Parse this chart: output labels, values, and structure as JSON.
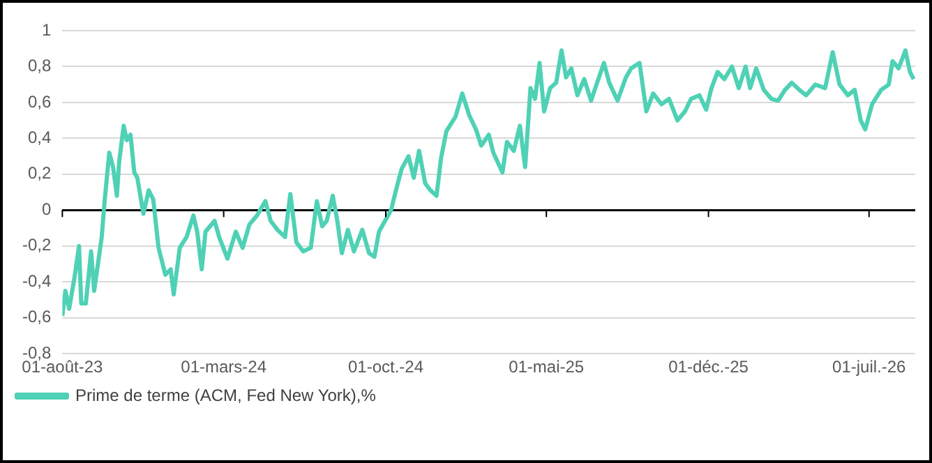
{
  "chart_data": {
    "type": "line",
    "x": [
      "2023-08-01",
      "2023-08-05",
      "2023-08-10",
      "2023-08-14",
      "2023-08-18",
      "2023-08-23",
      "2023-08-26",
      "2023-09-01",
      "2023-09-08",
      "2023-09-12",
      "2023-09-17",
      "2023-09-22",
      "2023-09-26",
      "2023-10-02",
      "2023-10-07",
      "2023-10-12",
      "2023-10-15",
      "2023-10-21",
      "2023-10-25",
      "2023-10-30",
      "2023-11-04",
      "2023-11-08",
      "2023-11-16",
      "2023-11-23",
      "2023-11-29",
      "2023-12-06",
      "2023-12-15",
      "2023-12-22",
      "2023-12-26",
      "2024-01-03",
      "2024-01-12",
      "2024-01-21",
      "2024-01-26",
      "2024-02-01",
      "2024-02-06",
      "2024-02-18",
      "2024-02-24",
      "2024-03-06",
      "2024-03-17",
      "2024-03-26",
      "2024-04-04",
      "2024-04-14",
      "2024-04-25",
      "2024-05-02",
      "2024-05-11",
      "2024-05-21",
      "2024-05-28",
      "2024-06-05",
      "2024-06-14",
      "2024-06-24",
      "2024-07-02",
      "2024-07-09",
      "2024-07-15",
      "2024-07-23",
      "2024-07-29",
      "2024-08-04",
      "2024-08-12",
      "2024-08-20",
      "2024-08-31",
      "2024-09-09",
      "2024-09-16",
      "2024-09-22",
      "2024-09-30",
      "2024-10-08",
      "2024-10-15",
      "2024-10-22",
      "2024-10-31",
      "2024-11-07",
      "2024-11-14",
      "2024-11-22",
      "2024-11-29",
      "2024-12-07",
      "2024-12-13",
      "2024-12-20",
      "2025-01-01",
      "2025-01-10",
      "2025-01-19",
      "2025-01-28",
      "2025-02-04",
      "2025-02-14",
      "2025-02-20",
      "2025-03-04",
      "2025-03-10",
      "2025-03-19",
      "2025-03-27",
      "2025-04-03",
      "2025-04-10",
      "2025-04-16",
      "2025-04-22",
      "2025-04-28",
      "2025-05-06",
      "2025-05-14",
      "2025-05-21",
      "2025-05-27",
      "2025-06-03",
      "2025-06-11",
      "2025-06-20",
      "2025-06-29",
      "2025-07-07",
      "2025-07-16",
      "2025-07-23",
      "2025-08-03",
      "2025-08-14",
      "2025-08-21",
      "2025-09-01",
      "2025-09-10",
      "2025-09-19",
      "2025-09-30",
      "2025-10-10",
      "2025-10-21",
      "2025-10-31",
      "2025-11-08",
      "2025-11-19",
      "2025-11-28",
      "2025-12-05",
      "2025-12-13",
      "2025-12-22",
      "2026-01-01",
      "2026-01-10",
      "2026-01-19",
      "2026-01-25",
      "2026-02-02",
      "2026-02-12",
      "2026-02-22",
      "2026-03-03",
      "2026-03-12",
      "2026-03-21",
      "2026-03-31",
      "2026-04-09",
      "2026-04-21",
      "2026-05-04",
      "2026-05-14",
      "2026-05-23",
      "2026-06-03",
      "2026-06-12",
      "2026-06-20",
      "2026-06-26",
      "2026-07-05",
      "2026-07-17",
      "2026-07-27",
      "2026-08-01",
      "2026-08-09",
      "2026-08-18",
      "2026-08-24",
      "2026-08-29"
    ],
    "series": [
      {
        "name": "Prime de terme (ACM, Fed New York),%",
        "color": "#4fd1b5",
        "values": [
          -0.59,
          -0.45,
          -0.55,
          -0.45,
          -0.35,
          -0.2,
          -0.52,
          -0.52,
          -0.23,
          -0.45,
          -0.3,
          -0.15,
          0.06,
          0.32,
          0.24,
          0.08,
          0.27,
          0.47,
          0.39,
          0.42,
          0.21,
          0.18,
          -0.02,
          0.11,
          0.06,
          -0.21,
          -0.36,
          -0.33,
          -0.47,
          -0.21,
          -0.15,
          -0.03,
          -0.12,
          -0.33,
          -0.12,
          -0.06,
          -0.15,
          -0.27,
          -0.12,
          -0.21,
          -0.08,
          -0.03,
          0.05,
          -0.06,
          -0.11,
          -0.15,
          0.09,
          -0.18,
          -0.23,
          -0.21,
          0.05,
          -0.09,
          -0.06,
          0.08,
          -0.06,
          -0.24,
          -0.11,
          -0.23,
          -0.11,
          -0.24,
          -0.26,
          -0.12,
          -0.06,
          0.0,
          0.12,
          0.23,
          0.3,
          0.18,
          0.33,
          0.15,
          0.11,
          0.08,
          0.29,
          0.44,
          0.52,
          0.65,
          0.53,
          0.45,
          0.36,
          0.42,
          0.32,
          0.21,
          0.38,
          0.33,
          0.47,
          0.24,
          0.68,
          0.62,
          0.82,
          0.55,
          0.68,
          0.71,
          0.89,
          0.74,
          0.79,
          0.64,
          0.73,
          0.61,
          0.71,
          0.82,
          0.71,
          0.61,
          0.74,
          0.79,
          0.82,
          0.55,
          0.65,
          0.59,
          0.62,
          0.5,
          0.55,
          0.62,
          0.64,
          0.56,
          0.68,
          0.77,
          0.73,
          0.8,
          0.68,
          0.8,
          0.68,
          0.79,
          0.67,
          0.62,
          0.61,
          0.67,
          0.71,
          0.67,
          0.64,
          0.7,
          0.68,
          0.88,
          0.7,
          0.64,
          0.67,
          0.5,
          0.45,
          0.59,
          0.67,
          0.7,
          0.83,
          0.79,
          0.89,
          0.77,
          0.73
        ]
      }
    ],
    "xlim": [
      "2023-08-01",
      "2026-08-31"
    ],
    "xticks": [
      {
        "value": "2023-08-01",
        "label": "01-août-23"
      },
      {
        "value": "2024-03-01",
        "label": "01-mars-24"
      },
      {
        "value": "2024-10-01",
        "label": "01-oct.-24"
      },
      {
        "value": "2025-05-01",
        "label": "01-mai-25"
      },
      {
        "value": "2025-12-01",
        "label": "01-déc.-25"
      },
      {
        "value": "2026-07-01",
        "label": "01-juil.-26"
      }
    ],
    "ylim": [
      -0.8,
      1
    ],
    "yticks": [
      {
        "value": -0.8,
        "label": "-0,8"
      },
      {
        "value": -0.6,
        "label": "-0,6"
      },
      {
        "value": -0.4,
        "label": "-0,4"
      },
      {
        "value": -0.2,
        "label": "-0,2"
      },
      0,
      {
        "value": 0.2,
        "label": "0,2"
      },
      {
        "value": 0.4,
        "label": "0,4"
      },
      {
        "value": 0.6,
        "label": "0,6"
      },
      {
        "value": 0.8,
        "label": "0,8"
      },
      1
    ],
    "grid": "y",
    "legend": "bottom left"
  }
}
